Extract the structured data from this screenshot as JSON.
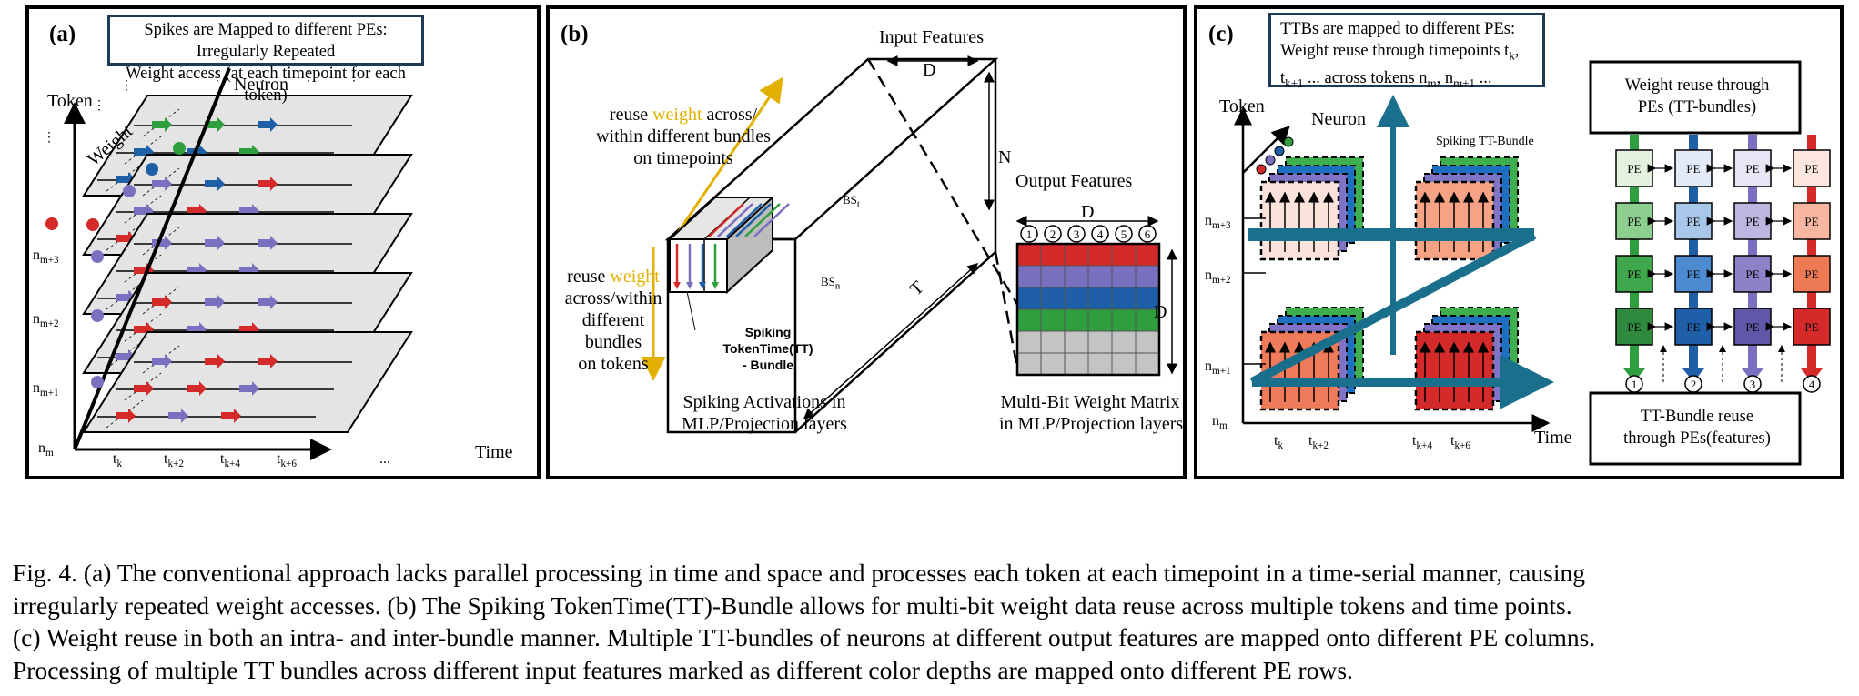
{
  "panel_a": {
    "label": "(a)",
    "box_text_1": "Spikes are Mapped to different PEs: Irregularly Repeated",
    "box_text_2": "Weight access (at each timepoint for each token)",
    "token_label": "Token",
    "neuron_label": "Neuron",
    "weight_label": "Weight",
    "time_label": "Time",
    "row_labels": [
      "n_{m+3}",
      "n_{m+2}",
      "n_{m+1}",
      "n_{m}"
    ],
    "time_ticks": [
      "t_{k}",
      "t_{k+2}",
      "t_{k+4}",
      "t_{k+6}",
      "..."
    ]
  },
  "panel_b": {
    "label": "(b)",
    "input_features": "Input Features",
    "dim_D": "D",
    "dim_N": "N",
    "dim_T": "T",
    "reuse_time_1": "reuse",
    "reuse_time_weight": "weight",
    "reuse_time_2": "across/",
    "reuse_time_3": "within different bundles",
    "reuse_time_4": "on timepoints",
    "reuse_token_1": "reuse",
    "reuse_token_weight": "weight",
    "reuse_token_2": "across/within",
    "reuse_token_3": "different bundles",
    "reuse_token_4": "on tokens",
    "bs_t": "BS_t",
    "bs_n": "BS_n",
    "bundle_1": "Spiking",
    "bundle_2": "TokenTime(TT)",
    "bundle_3": "- Bundle",
    "spiking_act_1": "Spiking Activations in",
    "spiking_act_2": "MLP/Projection layers",
    "output_features": "Output Features",
    "output_D": "D",
    "matrix_D": "D",
    "feature_numbers": [
      "1",
      "2",
      "3",
      "4",
      "5",
      "6"
    ],
    "matrix_label_1": "Multi-Bit Weight Matrix",
    "matrix_label_2": "in MLP/Projection layers"
  },
  "panel_c": {
    "label": "(c)",
    "ttb_1": "TTBs are mapped to different PEs:",
    "ttb_2": "Weight reuse through timepoints t_{k},",
    "ttb_3": "t_{k+1} ... across tokens n_{m}, n_{m+1} ...",
    "token_label": "Token",
    "neuron_label": "Neuron",
    "spiking_tt_bundle": "Spiking TT-Bundle",
    "time_label": "Time",
    "row_labels": [
      "n_{m+3}",
      "n_{m+2}",
      "n_{m+1}",
      "n_{m}"
    ],
    "time_ticks": [
      "t_{k}",
      "t_{k+2}",
      "t_{k+4}",
      "t_{k+6}"
    ],
    "pe_box_top_1": "Weight reuse through",
    "pe_box_top_2": "PEs (TT-bundles)",
    "pe_label": "PE",
    "pe_column_numbers": [
      "1",
      "2",
      "3",
      "4"
    ],
    "pe_box_bottom_1": "TT-Bundle reuse",
    "pe_box_bottom_2": "through PEs(features)"
  },
  "caption": {
    "line1": "Fig. 4.  (a) The conventional approach lacks parallel processing in time and space and processes each token at each timepoint in a time-serial manner, causing",
    "line2": "irregularly repeated weight accesses. (b) The Spiking TokenTime(TT)-Bundle allows for multi-bit weight data reuse across multiple tokens and time points.",
    "line3": "(c) Weight reuse in both an intra- and inter-bundle manner. Multiple TT-bundles of neurons at different output features are mapped onto different PE columns.",
    "line4": "Processing of multiple TT bundles across different input features marked as different color depths are mapped onto different PE rows."
  },
  "colors": {
    "red": "#d42a2a",
    "green": "#2e9e3e",
    "blue": "#1e5fa8",
    "purple": "#7a70c0",
    "gold": "#e2b100",
    "teal": "#1a6f8c",
    "gray": "#c4c4c4"
  }
}
